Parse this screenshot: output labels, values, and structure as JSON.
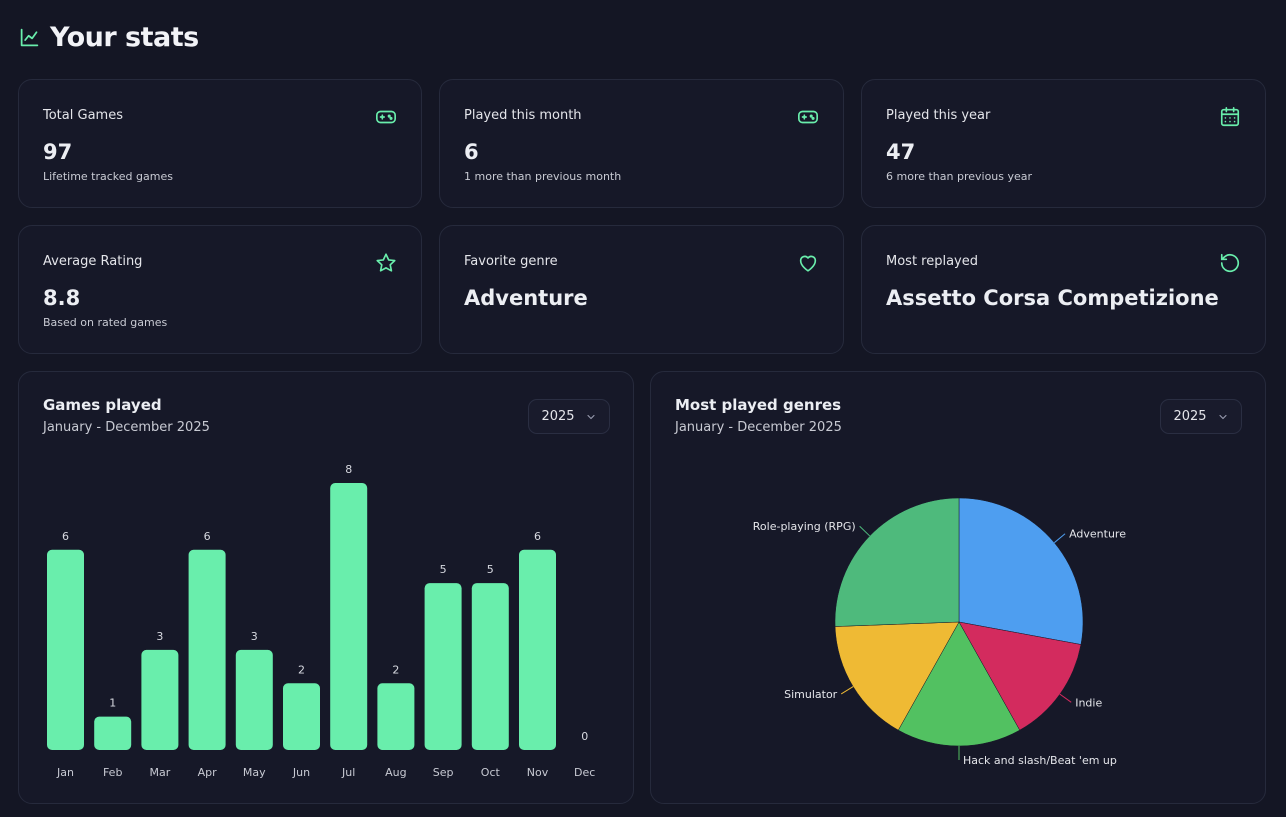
{
  "page": {
    "title": "Your stats"
  },
  "stats": [
    {
      "label": "Total Games",
      "value": "97",
      "sub": "Lifetime tracked games",
      "icon": "gamepad-icon"
    },
    {
      "label": "Played this month",
      "value": "6",
      "sub": "1 more than previous month",
      "icon": "gamepad-icon"
    },
    {
      "label": "Played this year",
      "value": "47",
      "sub": "6 more than previous year",
      "icon": "calendar-icon"
    },
    {
      "label": "Average Rating",
      "value": "8.8",
      "sub": "Based on rated games",
      "icon": "star-icon"
    },
    {
      "label": "Favorite genre",
      "value": "Adventure",
      "icon": "heart-icon"
    },
    {
      "label": "Most replayed",
      "value": "Assetto Corsa Competizione",
      "icon": "replay-icon"
    }
  ],
  "games_chart": {
    "title": "Games played",
    "subtitle": "January - December 2025",
    "year_select": "2025"
  },
  "genres_chart": {
    "title": "Most played genres",
    "subtitle": "January - December 2025",
    "year_select": "2025"
  },
  "colors": {
    "accent": "#69eeac",
    "background": "#141624",
    "card": "#161828",
    "border": "#262a3c"
  },
  "chart_data": [
    {
      "type": "bar",
      "title": "Games played",
      "categories": [
        "Jan",
        "Feb",
        "Mar",
        "Apr",
        "May",
        "Jun",
        "Jul",
        "Aug",
        "Sep",
        "Oct",
        "Nov",
        "Dec"
      ],
      "values": [
        6,
        1,
        3,
        6,
        3,
        2,
        8,
        2,
        5,
        5,
        6,
        0
      ],
      "ylim": [
        0,
        8
      ],
      "color": "#69eeac"
    },
    {
      "type": "pie",
      "title": "Most played genres",
      "slices": [
        {
          "label": "Adventure",
          "value": 12,
          "color": "#4e9ef0"
        },
        {
          "label": "Indie",
          "value": 6,
          "color": "#d32b5e"
        },
        {
          "label": "Hack and slash/Beat 'em up",
          "value": 7,
          "color": "#52c161"
        },
        {
          "label": "Simulator",
          "value": 7,
          "color": "#efba34"
        },
        {
          "label": "Role-playing (RPG)",
          "value": 11,
          "color": "#4eba7c"
        }
      ]
    }
  ]
}
